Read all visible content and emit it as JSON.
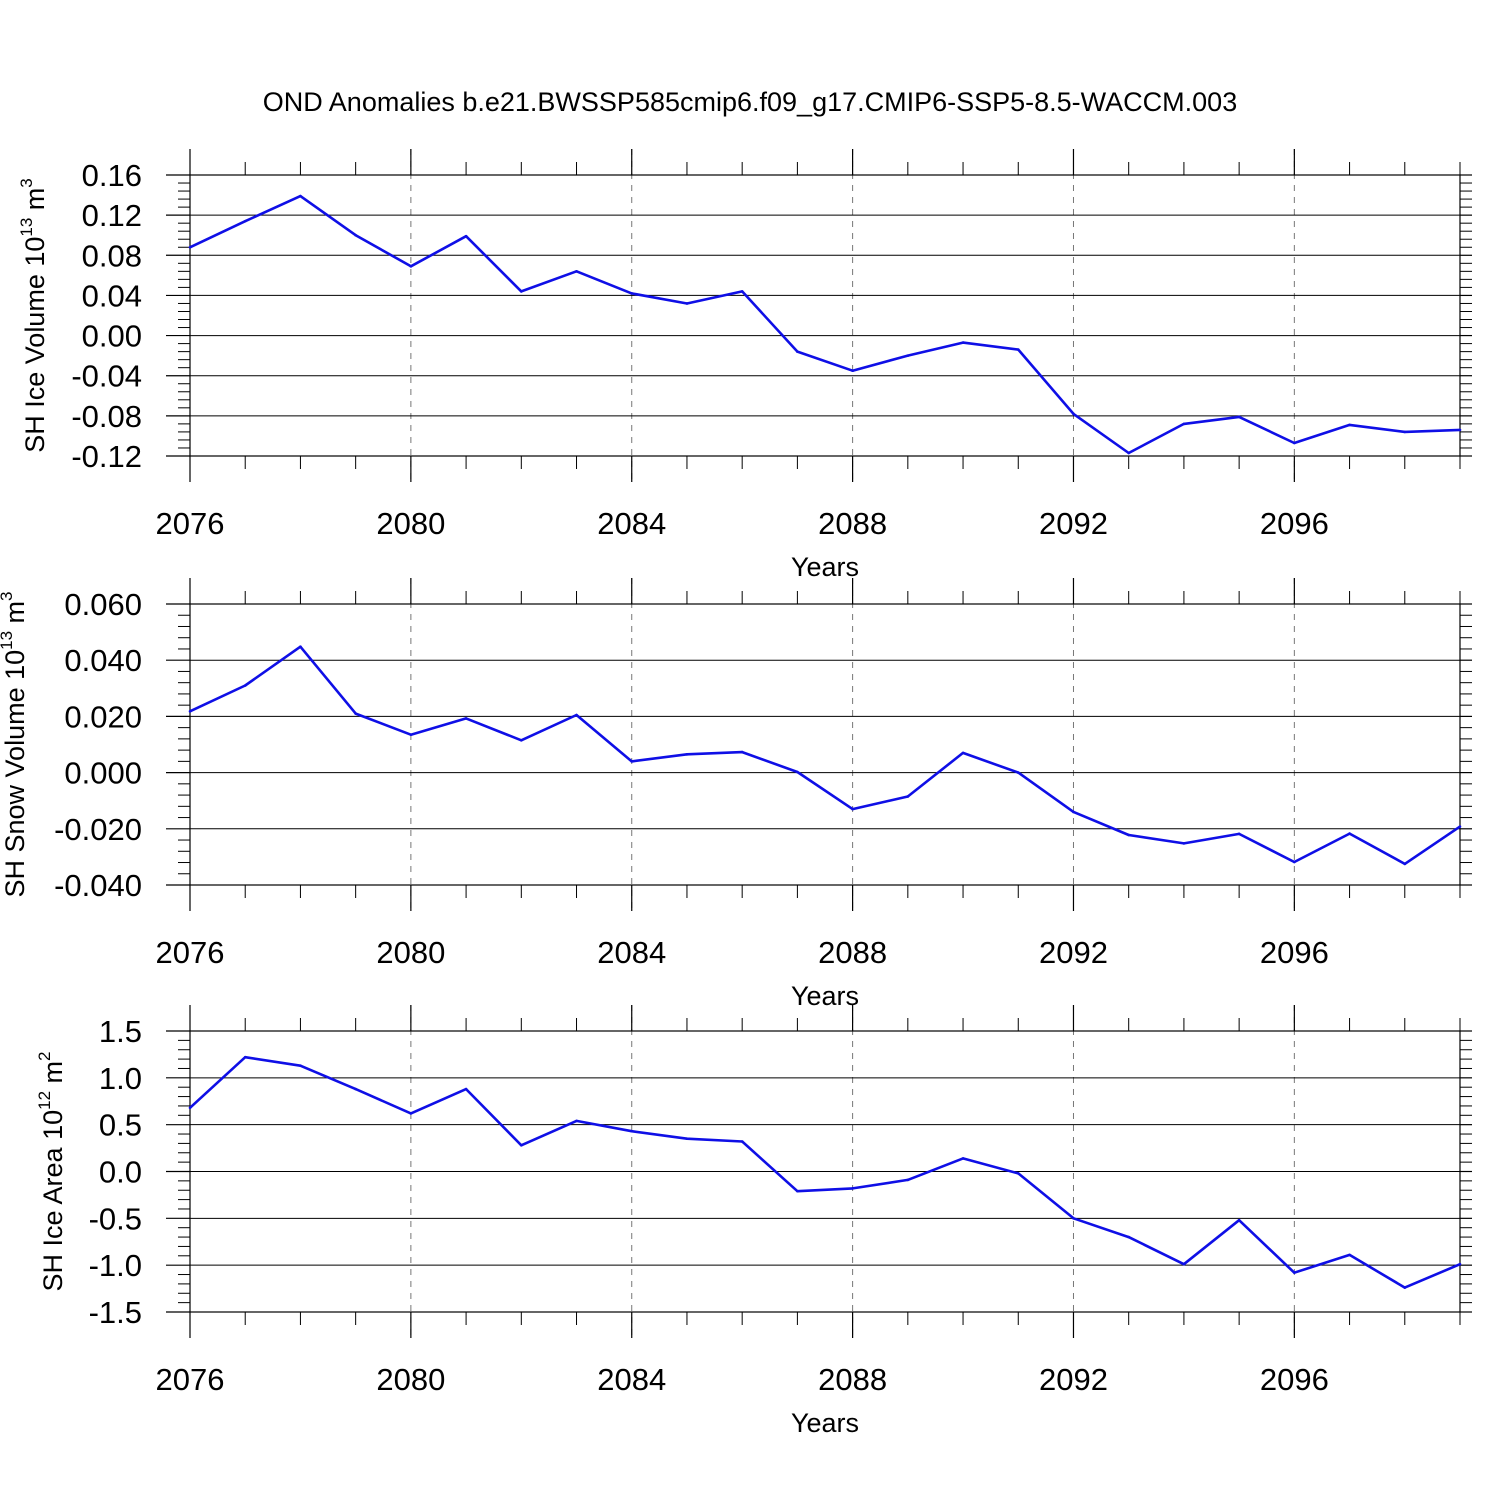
{
  "figure": {
    "title": "OND Anomalies b.e21.BWSSP585cmip6.f09_g17.CMIP6-SSP5-8.5-WACCM.003",
    "line_color": "#0f0fe6"
  },
  "chart_data": [
    {
      "type": "line",
      "title": "OND Anomalies b.e21.BWSSP585cmip6.f09_g17.CMIP6-SSP5-8.5-WACCM.003",
      "xlabel": "Years",
      "ylabel_main": "SH Ice Volume 10",
      "ylabel_exp": "13",
      "ylabel_unit": " m",
      "ylabel_unit_exp": "3",
      "xlim": [
        2076,
        2099
      ],
      "ylim": [
        -0.12,
        0.16
      ],
      "x_ticks": [
        2076,
        2080,
        2084,
        2088,
        2092,
        2096
      ],
      "x_tick_labels": [
        "2076",
        "2080",
        "2084",
        "2088",
        "2092",
        "2096"
      ],
      "y_ticks": [
        -0.12,
        -0.08,
        -0.04,
        0.0,
        0.04,
        0.08,
        0.12,
        0.16
      ],
      "y_tick_labels": [
        "-0.12",
        "-0.08",
        "-0.04",
        "0.00",
        "0.04",
        "0.08",
        "0.12",
        "0.16"
      ],
      "grid": "vertical-dashed",
      "series": [
        {
          "x": [
            2076,
            2077,
            2078,
            2079,
            2080,
            2081,
            2082,
            2083,
            2084,
            2085,
            2086,
            2087,
            2088,
            2089,
            2090,
            2091,
            2092,
            2093,
            2094,
            2095,
            2096,
            2097,
            2098,
            2099
          ],
          "values": [
            0.088,
            0.114,
            0.139,
            0.1,
            0.069,
            0.099,
            0.044,
            0.064,
            0.042,
            0.032,
            0.044,
            -0.016,
            -0.035,
            -0.02,
            -0.007,
            -0.014,
            -0.078,
            -0.117,
            -0.088,
            -0.081,
            -0.107,
            -0.089,
            -0.096,
            -0.094
          ]
        }
      ]
    },
    {
      "type": "line",
      "xlabel": "Years",
      "ylabel_main": "SH Snow Volume 10",
      "ylabel_exp": "13",
      "ylabel_unit": " m",
      "ylabel_unit_exp": "3",
      "xlim": [
        2076,
        2099
      ],
      "ylim": [
        -0.04,
        0.06
      ],
      "x_ticks": [
        2076,
        2080,
        2084,
        2088,
        2092,
        2096
      ],
      "x_tick_labels": [
        "2076",
        "2080",
        "2084",
        "2088",
        "2092",
        "2096"
      ],
      "y_ticks": [
        -0.04,
        -0.02,
        0.0,
        0.02,
        0.04,
        0.06
      ],
      "y_tick_labels": [
        "-0.040",
        "-0.020",
        "0.000",
        "0.020",
        "0.040",
        "0.060"
      ],
      "grid": "vertical-dashed",
      "series": [
        {
          "x": [
            2076,
            2077,
            2078,
            2079,
            2080,
            2081,
            2082,
            2083,
            2084,
            2085,
            2086,
            2087,
            2088,
            2089,
            2090,
            2091,
            2092,
            2093,
            2094,
            2095,
            2096,
            2097,
            2098,
            2099
          ],
          "values": [
            0.0218,
            0.031,
            0.0448,
            0.021,
            0.0135,
            0.0193,
            0.0115,
            0.0205,
            0.004,
            0.0065,
            0.0073,
            0.0002,
            -0.013,
            -0.0085,
            0.007,
            0.0,
            -0.014,
            -0.0222,
            -0.0252,
            -0.0218,
            -0.0318,
            -0.0217,
            -0.0325,
            -0.0192
          ]
        }
      ]
    },
    {
      "type": "line",
      "xlabel": "Years",
      "ylabel_main": "SH Ice Area 10",
      "ylabel_exp": "12",
      "ylabel_unit": " m",
      "ylabel_unit_exp": "2",
      "xlim": [
        2076,
        2099
      ],
      "ylim": [
        -1.5,
        1.5
      ],
      "x_ticks": [
        2076,
        2080,
        2084,
        2088,
        2092,
        2096
      ],
      "x_tick_labels": [
        "2076",
        "2080",
        "2084",
        "2088",
        "2092",
        "2096"
      ],
      "y_ticks": [
        -1.5,
        -1.0,
        -0.5,
        0.0,
        0.5,
        1.0,
        1.5
      ],
      "y_tick_labels": [
        "-1.5",
        "-1.0",
        "-0.5",
        "0.0",
        "0.5",
        "1.0",
        "1.5"
      ],
      "grid": "vertical-dashed",
      "series": [
        {
          "x": [
            2076,
            2077,
            2078,
            2079,
            2080,
            2081,
            2082,
            2083,
            2084,
            2085,
            2086,
            2087,
            2088,
            2089,
            2090,
            2091,
            2092,
            2093,
            2094,
            2095,
            2096,
            2097,
            2098,
            2099
          ],
          "values": [
            0.68,
            1.22,
            1.13,
            0.88,
            0.62,
            0.88,
            0.28,
            0.54,
            0.43,
            0.35,
            0.32,
            -0.21,
            -0.18,
            -0.09,
            0.14,
            -0.02,
            -0.5,
            -0.7,
            -0.99,
            -0.52,
            -1.08,
            -0.89,
            -1.24,
            -0.99
          ]
        }
      ]
    }
  ]
}
